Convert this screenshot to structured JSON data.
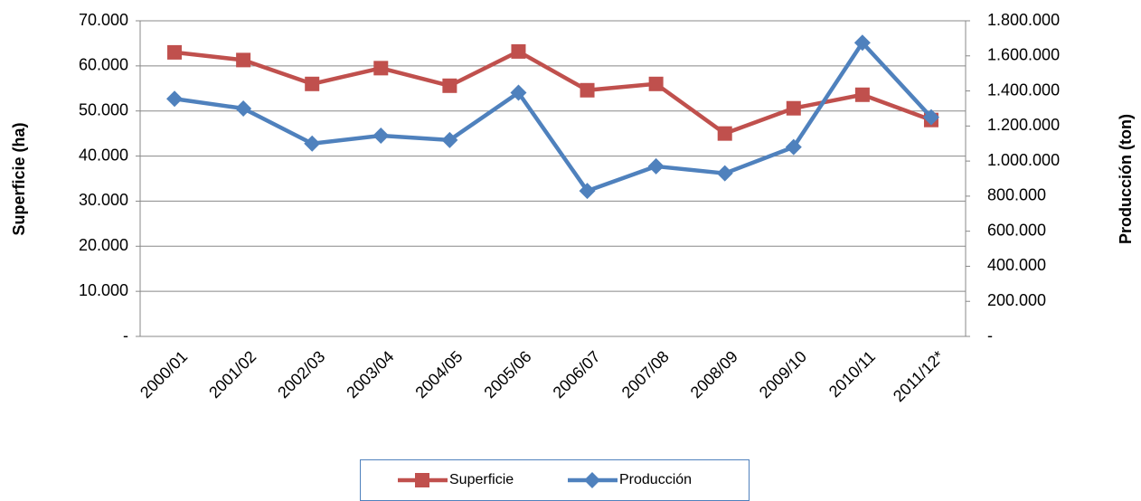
{
  "chart_data": {
    "type": "line",
    "categories": [
      "2000/01",
      "2001/02",
      "2002/03",
      "2003/04",
      "2004/05",
      "2005/06",
      "2006/07",
      "2007/08",
      "2008/09",
      "2009/10",
      "2010/11",
      "2011/12*"
    ],
    "y_label": "Superficie (ha)",
    "y2_label": "Producción (ton)",
    "series": [
      {
        "name": "Superficie",
        "color": "#c0504d",
        "marker": "square",
        "values": [
          63000,
          61300,
          56000,
          59500,
          55600,
          63200,
          54600,
          56000,
          45000,
          50600,
          53600,
          48000
        ]
      },
      {
        "name": "Producción",
        "color": "#4f81bd",
        "marker": "diamond",
        "axis": "y2",
        "values": [
          1355000,
          1300000,
          1100000,
          1145000,
          1120000,
          1390000,
          830000,
          970000,
          930000,
          1080000,
          1675000,
          1250000
        ]
      }
    ],
    "ylim": [
      0,
      70000
    ],
    "yticks": [
      {
        "value": 0,
        "label": "-"
      },
      {
        "value": 10000,
        "label": "10.000"
      },
      {
        "value": 20000,
        "label": "20.000"
      },
      {
        "value": 30000,
        "label": "30.000"
      },
      {
        "value": 40000,
        "label": "40.000"
      },
      {
        "value": 50000,
        "label": "50.000"
      },
      {
        "value": 60000,
        "label": "60.000"
      },
      {
        "value": 70000,
        "label": "70.000"
      }
    ],
    "y2lim": [
      0,
      1800000
    ],
    "y2ticks": [
      {
        "value": 0,
        "label": "-"
      },
      {
        "value": 200000,
        "label": "200.000"
      },
      {
        "value": 400000,
        "label": "400.000"
      },
      {
        "value": 600000,
        "label": "600.000"
      },
      {
        "value": 800000,
        "label": "800.000"
      },
      {
        "value": 1000000,
        "label": "1.000.000"
      },
      {
        "value": 1200000,
        "label": "1.200.000"
      },
      {
        "value": 1400000,
        "label": "1.400.000"
      },
      {
        "value": 1600000,
        "label": "1.600.000"
      },
      {
        "value": 1800000,
        "label": "1.800.000"
      }
    ],
    "grid": true,
    "legend": "bottom"
  }
}
